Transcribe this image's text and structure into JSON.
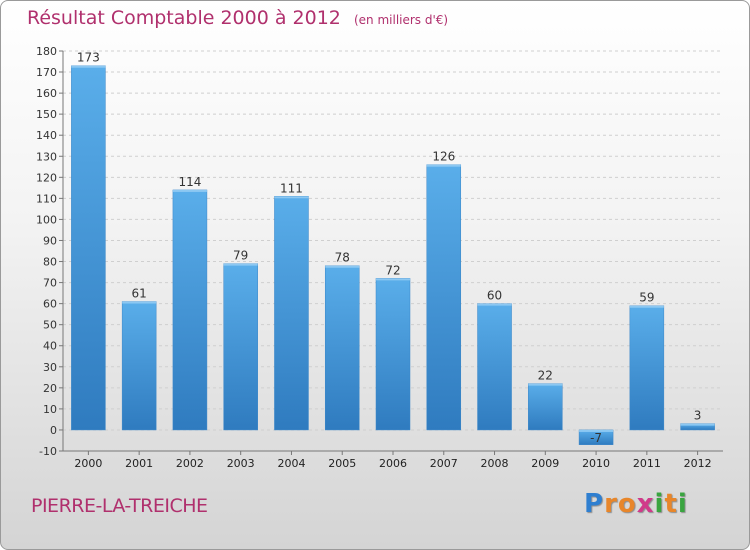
{
  "chart_data": {
    "type": "bar",
    "title": "Résultat Comptable 2000 à 2012",
    "unit": "(en milliers d'€)",
    "categories": [
      "2000",
      "2001",
      "2002",
      "2003",
      "2004",
      "2005",
      "2006",
      "2007",
      "2008",
      "2009",
      "2010",
      "2011",
      "2012"
    ],
    "values": [
      173,
      61,
      114,
      79,
      111,
      78,
      72,
      126,
      60,
      22,
      -7,
      59,
      3
    ],
    "ylim": [
      -10,
      180
    ],
    "yticks": [
      -10,
      0,
      10,
      20,
      30,
      40,
      50,
      60,
      70,
      80,
      90,
      100,
      110,
      120,
      130,
      140,
      150,
      160,
      170,
      180
    ],
    "grid": true,
    "bar_color": "#4a9fe0"
  },
  "footer": {
    "commune": "PIERRE-LA-TREICHE",
    "logo_letters": [
      {
        "ch": "P",
        "color": "#2f7fd0"
      },
      {
        "ch": "r",
        "color": "#e8862a"
      },
      {
        "ch": "o",
        "color": "#e8862a"
      },
      {
        "ch": "x",
        "color": "#d03a8a"
      },
      {
        "ch": "i",
        "color": "#3aa540"
      },
      {
        "ch": "t",
        "color": "#e8862a"
      },
      {
        "ch": "i",
        "color": "#3aa540"
      }
    ]
  }
}
